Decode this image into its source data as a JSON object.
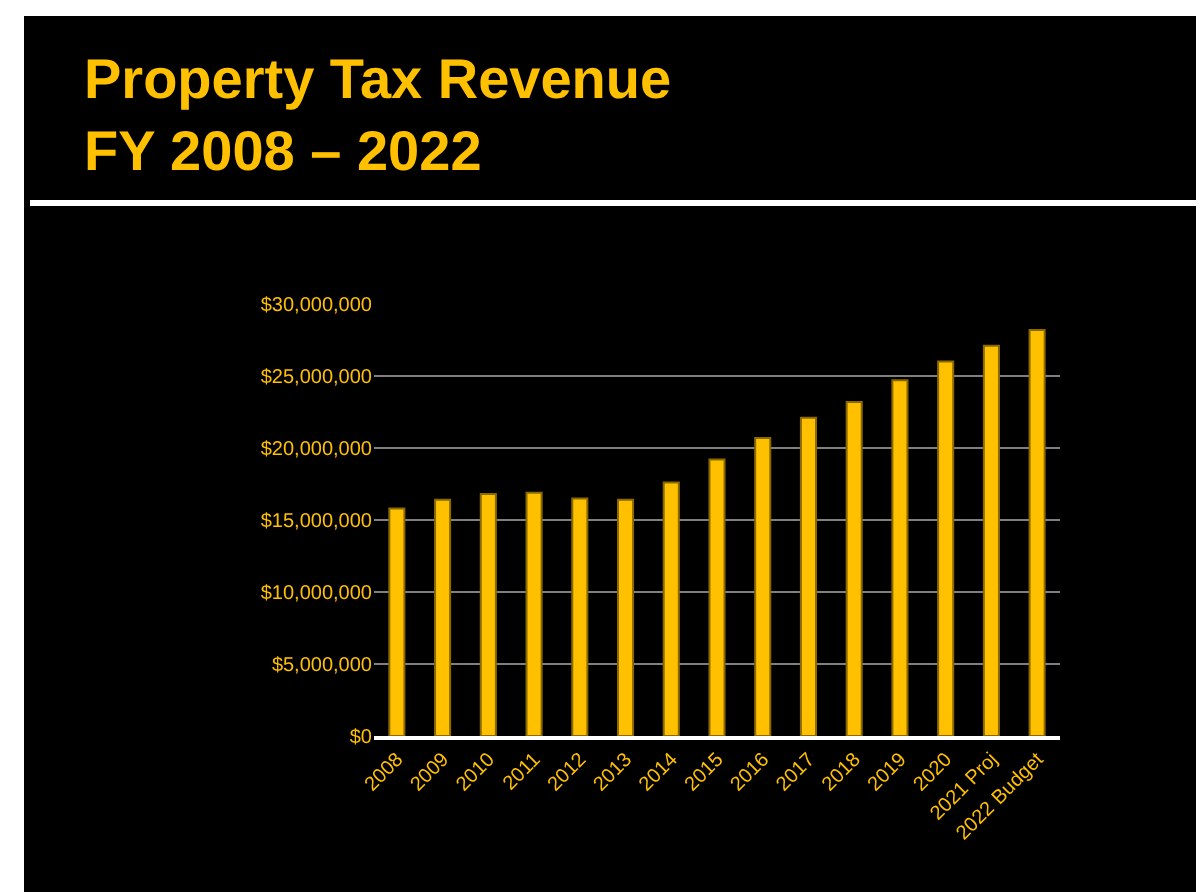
{
  "chart_data": {
    "type": "bar",
    "title": "Property Tax Revenue",
    "subtitle": "FY 2008 – 2022",
    "categories": [
      "2008",
      "2009",
      "2010",
      "2011",
      "2012",
      "2013",
      "2014",
      "2015",
      "2016",
      "2017",
      "2018",
      "2019",
      "2020",
      "2021 Proj",
      "2022 Budget"
    ],
    "values": [
      15800000,
      16400000,
      16800000,
      16900000,
      16500000,
      16400000,
      17600000,
      19200000,
      20700000,
      22100000,
      23200000,
      24700000,
      26000000,
      27100000,
      28200000
    ],
    "color": "#ffc000",
    "ylim": [
      0,
      30000000
    ],
    "yticks": [
      {
        "value": 0,
        "label": "$0"
      },
      {
        "value": 5000000,
        "label": "$5,000,000"
      },
      {
        "value": 10000000,
        "label": "$10,000,000"
      },
      {
        "value": 15000000,
        "label": "$15,000,000"
      },
      {
        "value": 20000000,
        "label": "$20,000,000"
      },
      {
        "value": 25000000,
        "label": "$25,000,000"
      },
      {
        "value": 30000000,
        "label": "$30,000,000"
      }
    ],
    "grid": "y"
  }
}
